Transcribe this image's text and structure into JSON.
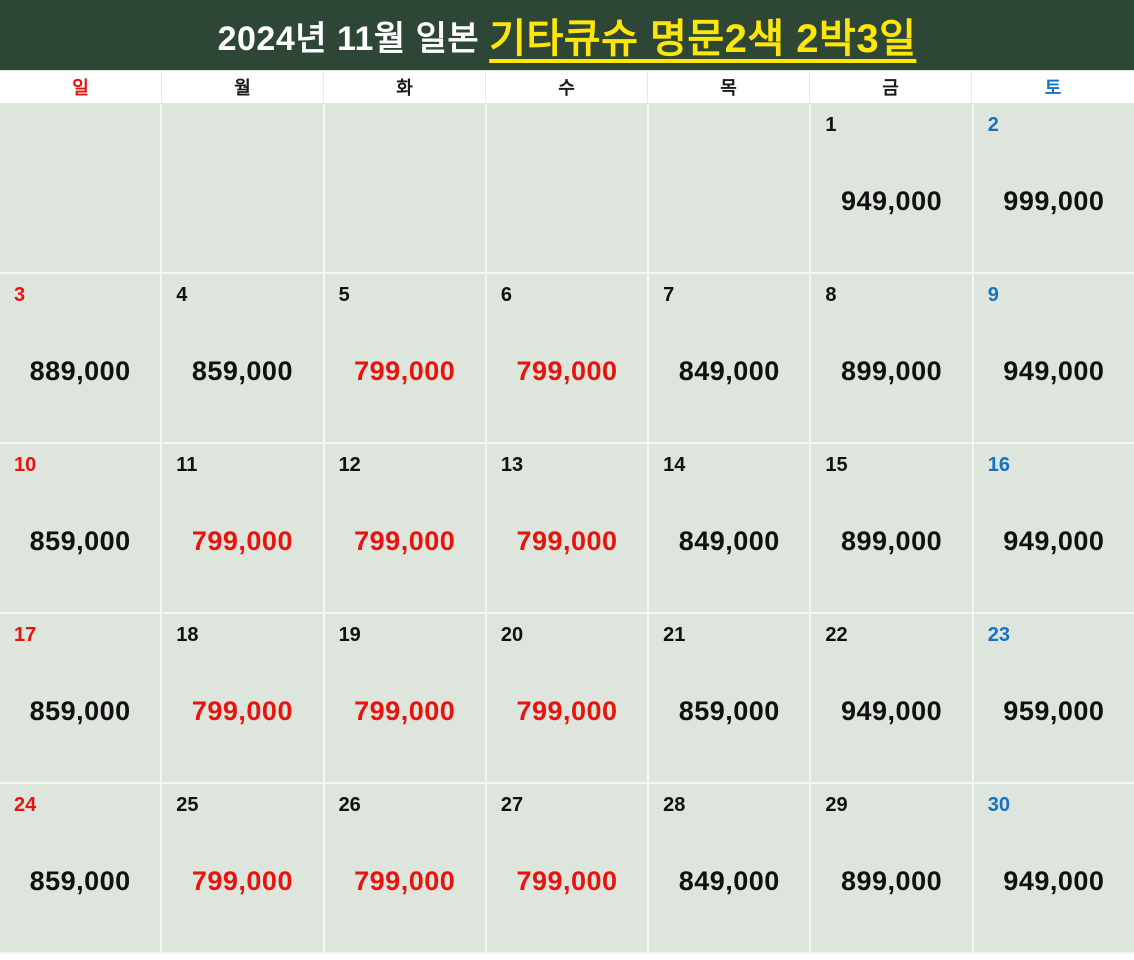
{
  "header": {
    "title_prefix": "2024년 11월 일본",
    "title_highlight": "기타큐슈 명문2색 2박3일",
    "bar_color": "#2d4636",
    "highlight_color": "#ffe60a"
  },
  "colors": {
    "sunday_red": "#e8130c",
    "saturday_blue": "#1474c4",
    "sale_price_red": "#e8130c",
    "cell_background": "#dde5dc"
  },
  "weekdays": [
    {
      "label": "일",
      "type": "sun"
    },
    {
      "label": "월",
      "type": "wk"
    },
    {
      "label": "화",
      "type": "wk"
    },
    {
      "label": "수",
      "type": "wk"
    },
    {
      "label": "목",
      "type": "wk"
    },
    {
      "label": "금",
      "type": "wk"
    },
    {
      "label": "토",
      "type": "sat"
    }
  ],
  "calendar": {
    "month": "2024-11",
    "weeks": [
      [
        {
          "day": "",
          "price": "",
          "day_type": "wk",
          "price_type": "normal"
        },
        {
          "day": "",
          "price": "",
          "day_type": "wk",
          "price_type": "normal"
        },
        {
          "day": "",
          "price": "",
          "day_type": "wk",
          "price_type": "normal"
        },
        {
          "day": "",
          "price": "",
          "day_type": "wk",
          "price_type": "normal"
        },
        {
          "day": "",
          "price": "",
          "day_type": "wk",
          "price_type": "normal"
        },
        {
          "day": "1",
          "price": "949,000",
          "day_type": "wk",
          "price_type": "normal"
        },
        {
          "day": "2",
          "price": "999,000",
          "day_type": "sat",
          "price_type": "normal"
        }
      ],
      [
        {
          "day": "3",
          "price": "889,000",
          "day_type": "sun",
          "price_type": "normal"
        },
        {
          "day": "4",
          "price": "859,000",
          "day_type": "wk",
          "price_type": "normal"
        },
        {
          "day": "5",
          "price": "799,000",
          "day_type": "wk",
          "price_type": "red"
        },
        {
          "day": "6",
          "price": "799,000",
          "day_type": "wk",
          "price_type": "red"
        },
        {
          "day": "7",
          "price": "849,000",
          "day_type": "wk",
          "price_type": "normal"
        },
        {
          "day": "8",
          "price": "899,000",
          "day_type": "wk",
          "price_type": "normal"
        },
        {
          "day": "9",
          "price": "949,000",
          "day_type": "sat",
          "price_type": "normal"
        }
      ],
      [
        {
          "day": "10",
          "price": "859,000",
          "day_type": "sun",
          "price_type": "normal"
        },
        {
          "day": "11",
          "price": "799,000",
          "day_type": "wk",
          "price_type": "red"
        },
        {
          "day": "12",
          "price": "799,000",
          "day_type": "wk",
          "price_type": "red"
        },
        {
          "day": "13",
          "price": "799,000",
          "day_type": "wk",
          "price_type": "red"
        },
        {
          "day": "14",
          "price": "849,000",
          "day_type": "wk",
          "price_type": "normal"
        },
        {
          "day": "15",
          "price": "899,000",
          "day_type": "wk",
          "price_type": "normal"
        },
        {
          "day": "16",
          "price": "949,000",
          "day_type": "sat",
          "price_type": "normal"
        }
      ],
      [
        {
          "day": "17",
          "price": "859,000",
          "day_type": "sun",
          "price_type": "normal"
        },
        {
          "day": "18",
          "price": "799,000",
          "day_type": "wk",
          "price_type": "red"
        },
        {
          "day": "19",
          "price": "799,000",
          "day_type": "wk",
          "price_type": "red"
        },
        {
          "day": "20",
          "price": "799,000",
          "day_type": "wk",
          "price_type": "red"
        },
        {
          "day": "21",
          "price": "859,000",
          "day_type": "wk",
          "price_type": "normal"
        },
        {
          "day": "22",
          "price": "949,000",
          "day_type": "wk",
          "price_type": "normal"
        },
        {
          "day": "23",
          "price": "959,000",
          "day_type": "sat",
          "price_type": "normal"
        }
      ],
      [
        {
          "day": "24",
          "price": "859,000",
          "day_type": "sun",
          "price_type": "normal"
        },
        {
          "day": "25",
          "price": "799,000",
          "day_type": "wk",
          "price_type": "red"
        },
        {
          "day": "26",
          "price": "799,000",
          "day_type": "wk",
          "price_type": "red"
        },
        {
          "day": "27",
          "price": "799,000",
          "day_type": "wk",
          "price_type": "red"
        },
        {
          "day": "28",
          "price": "849,000",
          "day_type": "wk",
          "price_type": "normal"
        },
        {
          "day": "29",
          "price": "899,000",
          "day_type": "wk",
          "price_type": "normal"
        },
        {
          "day": "30",
          "price": "949,000",
          "day_type": "sat",
          "price_type": "normal"
        }
      ]
    ]
  }
}
